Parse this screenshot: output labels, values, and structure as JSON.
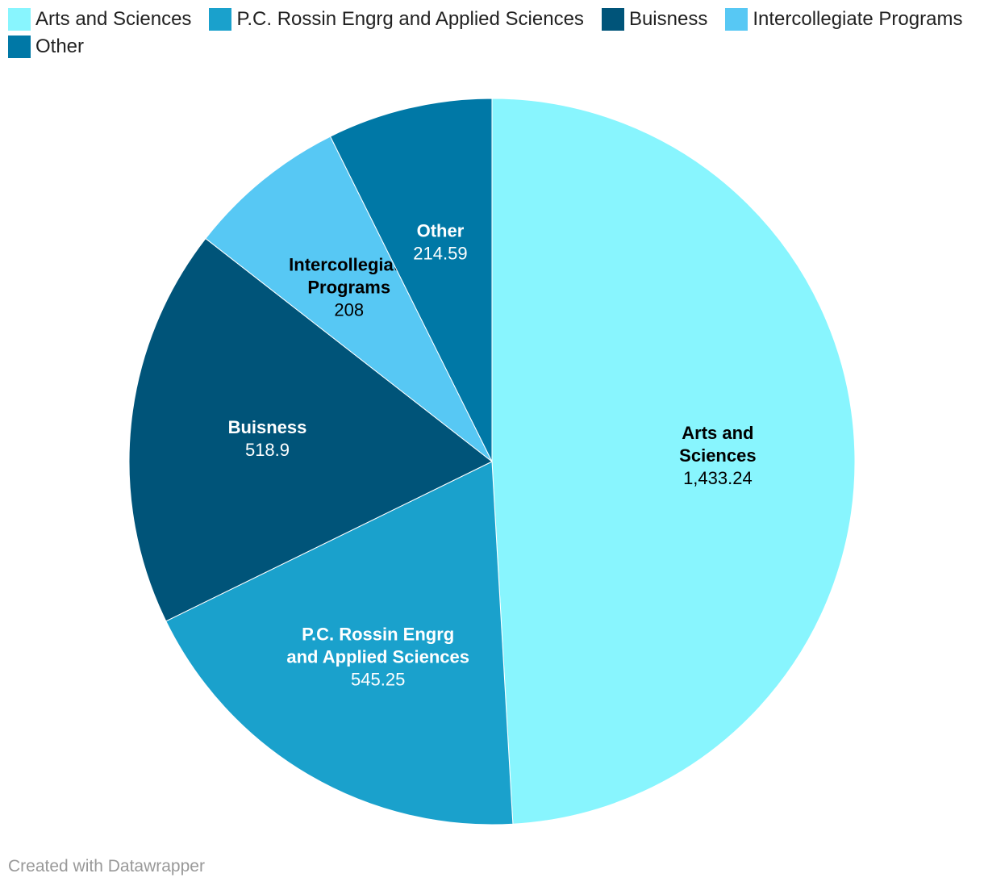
{
  "chart_data": {
    "type": "pie",
    "categories": [
      "Arts and Sciences",
      "P.C. Rossin Engrg and Applied Sciences",
      "Buisness",
      "Intercollegiate Programs",
      "Other"
    ],
    "values": [
      1433.24,
      545.25,
      518.9,
      208,
      214.59
    ],
    "value_labels": [
      "1,433.24",
      "545.25",
      "518.9",
      "208",
      "214.59"
    ],
    "slice_label_lines": [
      [
        "Arts and",
        "Sciences"
      ],
      [
        "P.C. Rossin Engrg",
        "and Applied Sciences"
      ],
      [
        "Buisness"
      ],
      [
        "Intercollegiate",
        "Programs"
      ],
      [
        "Other"
      ]
    ],
    "colors": [
      "#88f5fe",
      "#1aa1cc",
      "#005479",
      "#57c8f4",
      "#0078a6"
    ],
    "label_text_colors": [
      "#000000",
      "#ffffff",
      "#ffffff",
      "#000000",
      "#ffffff"
    ],
    "legend_position": "top-left"
  },
  "footer": {
    "credit": "Created with Datawrapper"
  }
}
